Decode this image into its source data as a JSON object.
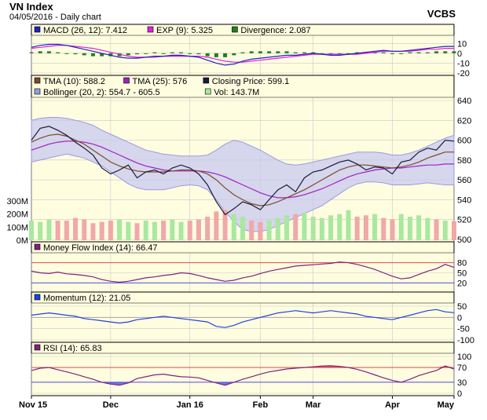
{
  "header": {
    "title": "VN Index",
    "subtitle": "04/05/2016 - Daily chart",
    "brand": "VCBS"
  },
  "colors": {
    "panel_bg": "#fffde0",
    "grid": "#c8c8c8",
    "price": "#1a1a3a",
    "tma10": "#7a4a2a",
    "tma25": "#a020c0",
    "bollinger_fill": "#c8c8f0",
    "bollinger_line": "#9a9ae0",
    "vol_up": "#a8e8a0",
    "vol_down": "#f0a8a8",
    "macd": "#2020c0",
    "exp": "#e020e0",
    "divergence": "#208020",
    "mfi": "#802080",
    "momentum": "#2040e0",
    "rsi": "#802080",
    "threshold": "#e05050",
    "lower_threshold": "#5050e0",
    "overbought_fill": "#e03030",
    "oversold_fill": "#5050e0"
  },
  "chart_data": [
    {
      "type": "line",
      "panel": "macd",
      "ylim": [
        -20,
        15
      ],
      "y_ticks": [
        "10",
        "0",
        "-10",
        "-20"
      ],
      "legend": [
        {
          "label": "MACD (26, 12): 7.412",
          "color": "#2020c0"
        },
        {
          "label": "EXP (9): 5.325",
          "color": "#e020e0"
        },
        {
          "label": "Divergence: 2.087",
          "color": "#208020"
        }
      ],
      "series": [
        {
          "name": "MACD",
          "values": [
            6,
            8,
            9,
            9,
            8,
            6,
            4,
            2,
            0,
            -2,
            -4,
            -5,
            -5,
            -4,
            -3,
            -3,
            -2,
            -2,
            -3,
            -4,
            -7,
            -10,
            -12,
            -11,
            -8,
            -6,
            -5,
            -4,
            -3,
            -2,
            -2,
            -1,
            0,
            -1,
            -2,
            -2,
            -1,
            0,
            1,
            2,
            3,
            2,
            2,
            3,
            4,
            5,
            6,
            7,
            7
          ]
        },
        {
          "name": "EXP",
          "values": [
            5,
            6,
            7,
            8,
            8,
            7,
            6,
            5,
            3,
            1,
            -1,
            -3,
            -4,
            -4,
            -4,
            -3,
            -3,
            -3,
            -3,
            -3,
            -4,
            -6,
            -8,
            -9,
            -9,
            -8,
            -7,
            -6,
            -5,
            -4,
            -3,
            -2,
            -1,
            -1,
            -1,
            -1,
            -1,
            -1,
            0,
            1,
            2,
            2,
            2,
            2,
            3,
            4,
            4,
            5,
            5
          ]
        },
        {
          "name": "Divergence",
          "values": [
            1,
            2,
            2,
            1,
            0,
            -1,
            -2,
            -3,
            -3,
            -3,
            -3,
            -2,
            -1,
            0,
            1,
            0,
            1,
            1,
            0,
            -1,
            -3,
            -4,
            -4,
            -2,
            1,
            2,
            2,
            2,
            2,
            2,
            1,
            1,
            1,
            0,
            -1,
            -1,
            0,
            1,
            1,
            1,
            1,
            0,
            0,
            1,
            1,
            1,
            2,
            2,
            2
          ]
        }
      ]
    },
    {
      "type": "line",
      "panel": "price",
      "ylim": [
        500,
        640
      ],
      "y_ticks": [
        "640",
        "620",
        "600",
        "580",
        "560",
        "540",
        "520",
        "500"
      ],
      "volume_ticks": [
        "300M",
        "200M",
        "100M",
        "0M"
      ],
      "legend": [
        {
          "label": "TMA (10): 588.2",
          "color": "#7a4a2a"
        },
        {
          "label": "TMA (25): 576",
          "color": "#a020c0"
        },
        {
          "label": "Closing Price: 599.1",
          "color": "#1a1a3a"
        },
        {
          "label": "Bollinger (20, 2): 554.7 - 605.5",
          "color": "#9a9ae0"
        },
        {
          "label": "Vol: 143.7M",
          "color": "#a8e8a0"
        }
      ],
      "series": [
        {
          "name": "Closing Price",
          "values": [
            600,
            612,
            614,
            610,
            605,
            598,
            592,
            585,
            572,
            566,
            570,
            575,
            562,
            568,
            570,
            566,
            572,
            575,
            572,
            566,
            555,
            538,
            525,
            531,
            538,
            535,
            530,
            540,
            550,
            555,
            548,
            562,
            568,
            570,
            574,
            578,
            580,
            576,
            570,
            573,
            572,
            566,
            578,
            580,
            588,
            592,
            590,
            600,
            599
          ]
        },
        {
          "name": "TMA (10)",
          "values": [
            598,
            602,
            605,
            606,
            604,
            600,
            596,
            590,
            584,
            578,
            574,
            571,
            569,
            568,
            568,
            568,
            569,
            570,
            570,
            569,
            566,
            560,
            552,
            545,
            540,
            536,
            534,
            535,
            538,
            542,
            546,
            550,
            555,
            560,
            565,
            570,
            573,
            575,
            575,
            574,
            573,
            572,
            573,
            575,
            578,
            582,
            585,
            588,
            588
          ]
        },
        {
          "name": "TMA (25)",
          "values": [
            590,
            593,
            596,
            598,
            599,
            599,
            598,
            596,
            593,
            589,
            585,
            581,
            577,
            574,
            572,
            570,
            569,
            569,
            569,
            569,
            568,
            566,
            563,
            559,
            555,
            551,
            547,
            544,
            542,
            542,
            543,
            545,
            548,
            551,
            555,
            559,
            563,
            566,
            568,
            570,
            571,
            572,
            572,
            573,
            574,
            575,
            575,
            576,
            576
          ]
        },
        {
          "name": "Bollinger upper",
          "values": [
            620,
            622,
            623,
            623,
            622,
            620,
            618,
            615,
            610,
            606,
            602,
            598,
            594,
            590,
            588,
            586,
            585,
            584,
            584,
            584,
            585,
            590,
            596,
            600,
            598,
            594,
            590,
            585,
            580,
            576,
            575,
            576,
            578,
            580,
            582,
            584,
            586,
            588,
            588,
            588,
            587,
            585,
            585,
            587,
            590,
            594,
            598,
            602,
            605
          ]
        },
        {
          "name": "Bollinger lower",
          "values": [
            578,
            580,
            582,
            584,
            586,
            584,
            582,
            578,
            574,
            568,
            562,
            556,
            552,
            550,
            550,
            550,
            552,
            554,
            555,
            554,
            550,
            540,
            528,
            518,
            510,
            508,
            508,
            510,
            514,
            518,
            522,
            526,
            530,
            534,
            540,
            546,
            552,
            556,
            558,
            558,
            557,
            555,
            555,
            555,
            556,
            557,
            556,
            555,
            555
          ]
        }
      ],
      "volume_values": [
        150,
        140,
        160,
        150,
        150,
        170,
        160,
        130,
        140,
        150,
        160,
        140,
        130,
        150,
        140,
        150,
        160,
        140,
        150,
        160,
        180,
        220,
        230,
        200,
        180,
        150,
        140,
        150,
        170,
        190,
        200,
        210,
        180,
        170,
        190,
        200,
        230,
        180,
        190,
        200,
        170,
        160,
        200,
        180,
        190,
        170,
        160,
        150,
        144
      ],
      "volume_direction": [
        1,
        1,
        1,
        0,
        0,
        0,
        0,
        0,
        0,
        0,
        1,
        1,
        0,
        1,
        1,
        0,
        1,
        1,
        0,
        0,
        0,
        0,
        0,
        1,
        1,
        0,
        0,
        1,
        1,
        1,
        0,
        1,
        1,
        1,
        1,
        1,
        1,
        0,
        0,
        1,
        0,
        0,
        1,
        1,
        1,
        1,
        0,
        1,
        0
      ]
    },
    {
      "type": "line",
      "panel": "mfi",
      "ylim": [
        0,
        100
      ],
      "y_ticks": [
        "80",
        "50",
        "20"
      ],
      "thresholds": [
        80,
        20
      ],
      "legend": [
        {
          "label": "Money Flow Index (14): 66.47",
          "color": "#802080"
        }
      ],
      "series": [
        {
          "name": "Money Flow Index",
          "values": [
            55,
            50,
            48,
            52,
            47,
            45,
            42,
            38,
            30,
            25,
            22,
            25,
            30,
            35,
            38,
            42,
            45,
            50,
            48,
            42,
            35,
            30,
            25,
            28,
            35,
            40,
            48,
            55,
            60,
            65,
            70,
            72,
            74,
            76,
            78,
            82,
            80,
            75,
            68,
            60,
            50,
            40,
            32,
            35,
            45,
            55,
            62,
            75,
            66
          ]
        }
      ]
    },
    {
      "type": "line",
      "panel": "momentum",
      "ylim": [
        -100,
        50
      ],
      "y_ticks": [
        "50",
        "0",
        "-50",
        "-100"
      ],
      "legend": [
        {
          "label": "Momentum (12): 21.05",
          "color": "#2040e0"
        }
      ],
      "series": [
        {
          "name": "Momentum",
          "values": [
            10,
            15,
            20,
            15,
            10,
            5,
            -5,
            -10,
            -15,
            -20,
            -25,
            -20,
            -10,
            -5,
            0,
            5,
            0,
            -5,
            -10,
            -15,
            -20,
            -40,
            -45,
            -35,
            -20,
            -10,
            0,
            10,
            20,
            25,
            30,
            25,
            20,
            25,
            30,
            25,
            20,
            15,
            5,
            0,
            -5,
            -10,
            0,
            10,
            20,
            30,
            35,
            25,
            21
          ]
        }
      ]
    },
    {
      "type": "line",
      "panel": "rsi",
      "ylim": [
        0,
        100
      ],
      "y_ticks": [
        "100",
        "70",
        "30",
        "0"
      ],
      "thresholds": [
        70,
        30
      ],
      "legend": [
        {
          "label": "RSI (14): 65.83",
          "color": "#802080"
        }
      ],
      "series": [
        {
          "name": "RSI",
          "values": [
            62,
            68,
            70,
            64,
            58,
            52,
            45,
            38,
            30,
            25,
            22,
            28,
            40,
            45,
            50,
            52,
            48,
            45,
            44,
            42,
            35,
            28,
            22,
            30,
            38,
            45,
            52,
            58,
            62,
            66,
            68,
            70,
            72,
            74,
            75,
            73,
            70,
            65,
            58,
            50,
            42,
            35,
            30,
            38,
            48,
            55,
            62,
            74,
            66
          ]
        }
      ]
    }
  ],
  "x_axis": {
    "labels": [
      {
        "text": "Nov 15",
        "index": 0
      },
      {
        "text": "Dec",
        "index": 9
      },
      {
        "text": "Jan 16",
        "index": 18
      },
      {
        "text": "Feb",
        "index": 26
      },
      {
        "text": "Mar",
        "index": 32
      },
      {
        "text": "Apr",
        "index": 41
      },
      {
        "text": "May",
        "index": 48
      }
    ]
  }
}
